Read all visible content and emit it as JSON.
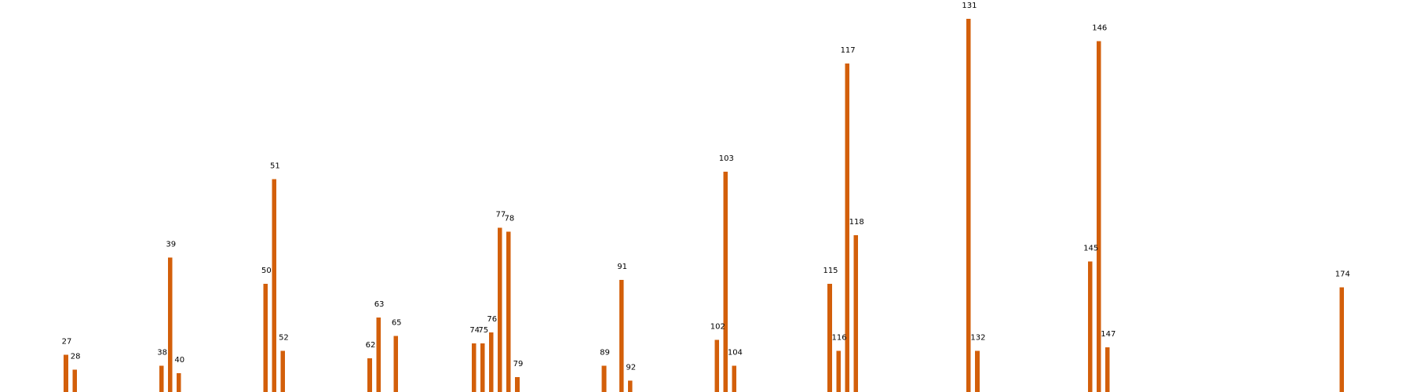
{
  "chart_data": {
    "type": "bar",
    "title": "",
    "xlabel": "",
    "ylabel": "",
    "grid": false,
    "legend": "none",
    "axes_visible": false,
    "bar_color": "#d35f0a",
    "xlim": [
      19.4,
      182.2
    ],
    "ylim": [
      0,
      100
    ],
    "points": [
      {
        "x": 27,
        "label": "27",
        "value": 10
      },
      {
        "x": 28,
        "label": "28",
        "value": 6
      },
      {
        "x": 38,
        "label": "38",
        "value": 7
      },
      {
        "x": 39,
        "label": "39",
        "value": 36
      },
      {
        "x": 40,
        "label": "40",
        "value": 5
      },
      {
        "x": 50,
        "label": "50",
        "value": 29
      },
      {
        "x": 51,
        "label": "51",
        "value": 57
      },
      {
        "x": 52,
        "label": "52",
        "value": 11
      },
      {
        "x": 62,
        "label": "62",
        "value": 9
      },
      {
        "x": 63,
        "label": "63",
        "value": 20
      },
      {
        "x": 65,
        "label": "65",
        "value": 15
      },
      {
        "x": 74,
        "label": "74",
        "value": 13
      },
      {
        "x": 75,
        "label": "75",
        "value": 13
      },
      {
        "x": 76,
        "label": "76",
        "value": 16
      },
      {
        "x": 77,
        "label": "77",
        "value": 44
      },
      {
        "x": 78,
        "label": "78",
        "value": 43
      },
      {
        "x": 79,
        "label": "79",
        "value": 4
      },
      {
        "x": 89,
        "label": "89",
        "value": 7
      },
      {
        "x": 91,
        "label": "91",
        "value": 30
      },
      {
        "x": 92,
        "label": "92",
        "value": 3
      },
      {
        "x": 102,
        "label": "102",
        "value": 14
      },
      {
        "x": 103,
        "label": "103",
        "value": 59
      },
      {
        "x": 104,
        "label": "104",
        "value": 7
      },
      {
        "x": 115,
        "label": "115",
        "value": 29
      },
      {
        "x": 116,
        "label": "116",
        "value": 11
      },
      {
        "x": 117,
        "label": "117",
        "value": 88
      },
      {
        "x": 118,
        "label": "118",
        "value": 42
      },
      {
        "x": 131,
        "label": "131",
        "value": 100
      },
      {
        "x": 132,
        "label": "132",
        "value": 11
      },
      {
        "x": 145,
        "label": "145",
        "value": 35
      },
      {
        "x": 146,
        "label": "146",
        "value": 94
      },
      {
        "x": 147,
        "label": "147",
        "value": 12
      },
      {
        "x": 174,
        "label": "174",
        "value": 28
      }
    ]
  }
}
